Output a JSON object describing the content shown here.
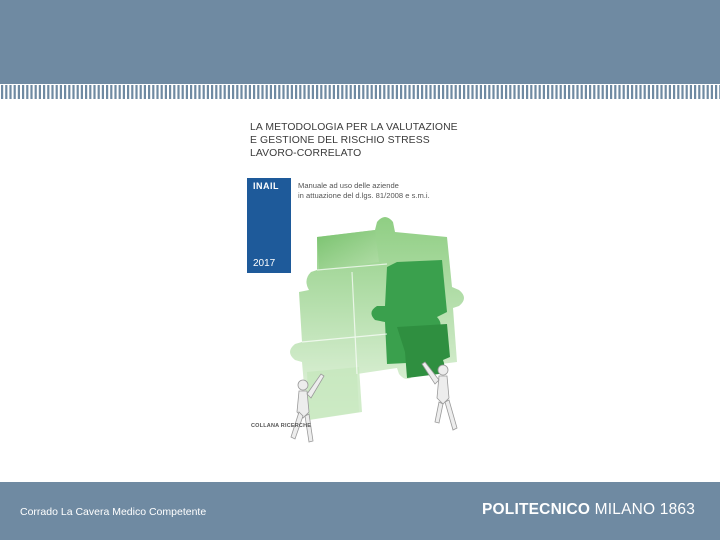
{
  "book": {
    "title": "LA METODOLOGIA PER LA VALUTAZIONE\nE GESTIONE DEL RISCHIO STRESS\nLAVORO-CORRELATO",
    "publisher_logo": "INAIL",
    "subtitle": "Manuale ad uso delle aziende\nin attuazione del d.lgs. 81/2008 e s.m.i.",
    "year": "2017",
    "series": "COLLANA RICERCHE",
    "cover_image": "green-puzzle-pieces-with-mannequins"
  },
  "footer": {
    "author": "Corrado La Cavera Medico Competente",
    "institution_bold": "POLITECNICO",
    "institution_rest": " MILANO 1863"
  },
  "colors": {
    "band": "#6f8aa2",
    "cover_blue": "#1e5a9a",
    "puzzle_light": "#8fce83",
    "puzzle_dark": "#2f9a45"
  }
}
